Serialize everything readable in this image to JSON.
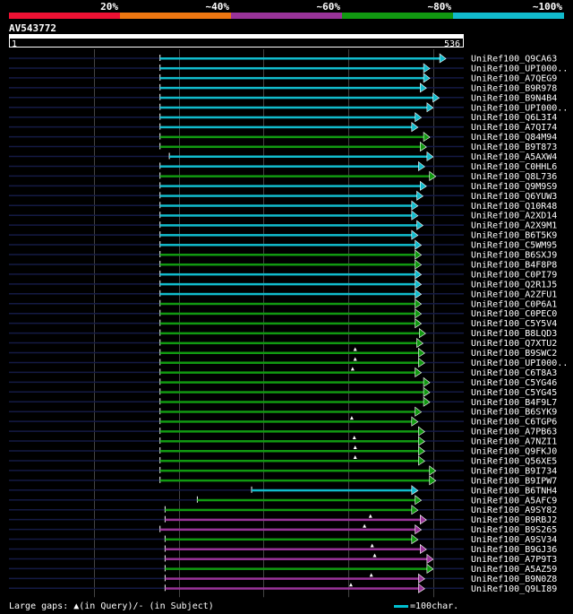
{
  "query_id": "AV543772",
  "axis_start": "1",
  "axis_end": "536",
  "legend": {
    "bins": [
      {
        "label": "20%",
        "color": "#ee1133"
      },
      {
        "label": "~40%",
        "color": "#ee7711"
      },
      {
        "label": "~60%",
        "color": "#993399"
      },
      {
        "label": "~80%",
        "color": "#119911"
      },
      {
        "label": "~100%",
        "color": "#11bbcc"
      }
    ]
  },
  "footer": {
    "text": "Large gaps: ▲(in Query)/- (in Subject)",
    "scale_label": "=100char."
  },
  "chart_data": {
    "type": "bar",
    "query_length": 536,
    "hits": [
      {
        "name": "UniRef100_Q9CA63",
        "start": 178,
        "end": 515,
        "color": "#11bbcc",
        "gap": null
      },
      {
        "name": "UniRef100_UPI000..",
        "start": 178,
        "end": 496,
        "color": "#11bbcc",
        "gap": null
      },
      {
        "name": "UniRef100_A7QEG9",
        "start": 178,
        "end": 496,
        "color": "#11bbcc",
        "gap": null
      },
      {
        "name": "UniRef100_B9R978",
        "start": 178,
        "end": 492,
        "color": "#11bbcc",
        "gap": null
      },
      {
        "name": "UniRef100_B9N4B4",
        "start": 178,
        "end": 507,
        "color": "#11bbcc",
        "gap": null
      },
      {
        "name": "UniRef100_UPI000..",
        "start": 178,
        "end": 500,
        "color": "#11bbcc",
        "gap": null
      },
      {
        "name": "UniRef100_Q6L3I4",
        "start": 178,
        "end": 486,
        "color": "#11bbcc",
        "gap": null
      },
      {
        "name": "UniRef100_A7QI74",
        "start": 178,
        "end": 482,
        "color": "#11bbcc",
        "gap": null
      },
      {
        "name": "UniRef100_Q84M94",
        "start": 178,
        "end": 496,
        "color": "#119911",
        "gap": null
      },
      {
        "name": "UniRef100_B9T873",
        "start": 178,
        "end": 492,
        "color": "#119911",
        "gap": null
      },
      {
        "name": "UniRef100_A5AXW4",
        "start": 189,
        "end": 500,
        "color": "#11bbcc",
        "gap": null
      },
      {
        "name": "UniRef100_C0HHL6",
        "start": 178,
        "end": 490,
        "color": "#11bbcc",
        "gap": null
      },
      {
        "name": "UniRef100_Q8L736",
        "start": 178,
        "end": 503,
        "color": "#119911",
        "gap": null
      },
      {
        "name": "UniRef100_Q9M9S9",
        "start": 178,
        "end": 492,
        "color": "#11bbcc",
        "gap": null
      },
      {
        "name": "UniRef100_Q6YUW3",
        "start": 178,
        "end": 488,
        "color": "#11bbcc",
        "gap": null
      },
      {
        "name": "UniRef100_Q10R48",
        "start": 178,
        "end": 482,
        "color": "#11bbcc",
        "gap": null
      },
      {
        "name": "UniRef100_A2XD14",
        "start": 178,
        "end": 482,
        "color": "#11bbcc",
        "gap": null
      },
      {
        "name": "UniRef100_A2X9M1",
        "start": 178,
        "end": 488,
        "color": "#11bbcc",
        "gap": null
      },
      {
        "name": "UniRef100_B6T5K9",
        "start": 178,
        "end": 482,
        "color": "#11bbcc",
        "gap": null
      },
      {
        "name": "UniRef100_C5WM95",
        "start": 178,
        "end": 486,
        "color": "#11bbcc",
        "gap": null
      },
      {
        "name": "UniRef100_B6SXJ9",
        "start": 178,
        "end": 486,
        "color": "#119911",
        "gap": null
      },
      {
        "name": "UniRef100_B4F8P8",
        "start": 178,
        "end": 486,
        "color": "#119911",
        "gap": null
      },
      {
        "name": "UniRef100_C0PI79",
        "start": 178,
        "end": 486,
        "color": "#11bbcc",
        "gap": null
      },
      {
        "name": "UniRef100_Q2R1J5",
        "start": 178,
        "end": 486,
        "color": "#11bbcc",
        "gap": null
      },
      {
        "name": "UniRef100_A2ZFU1",
        "start": 178,
        "end": 486,
        "color": "#11bbcc",
        "gap": null
      },
      {
        "name": "UniRef100_C0P6A1",
        "start": 178,
        "end": 486,
        "color": "#119911",
        "gap": null
      },
      {
        "name": "UniRef100_C0PEC0",
        "start": 178,
        "end": 486,
        "color": "#119911",
        "gap": null
      },
      {
        "name": "UniRef100_C5Y5V4",
        "start": 178,
        "end": 486,
        "color": "#119911",
        "gap": null
      },
      {
        "name": "UniRef100_B8LQD3",
        "start": 178,
        "end": 491,
        "color": "#119911",
        "gap": null
      },
      {
        "name": "UniRef100_Q7XTU2",
        "start": 178,
        "end": 488,
        "color": "#119911",
        "gap": null
      },
      {
        "name": "UniRef100_B9SWC2",
        "start": 178,
        "end": 490,
        "color": "#119911",
        "gap": 408
      },
      {
        "name": "UniRef100_UPI000..",
        "start": 178,
        "end": 490,
        "color": "#119911",
        "gap": 408
      },
      {
        "name": "UniRef100_C6T8A3",
        "start": 178,
        "end": 486,
        "color": "#119911",
        "gap": 405
      },
      {
        "name": "UniRef100_C5YG46",
        "start": 178,
        "end": 496,
        "color": "#119911",
        "gap": null
      },
      {
        "name": "UniRef100_C5YG45",
        "start": 178,
        "end": 496,
        "color": "#119911",
        "gap": null
      },
      {
        "name": "UniRef100_B4F9L7",
        "start": 178,
        "end": 496,
        "color": "#119911",
        "gap": null
      },
      {
        "name": "UniRef100_B6SYK9",
        "start": 178,
        "end": 486,
        "color": "#119911",
        "gap": null
      },
      {
        "name": "UniRef100_C6TGP6",
        "start": 178,
        "end": 482,
        "color": "#119911",
        "gap": 404
      },
      {
        "name": "UniRef100_A7PB63",
        "start": 178,
        "end": 490,
        "color": "#119911",
        "gap": null
      },
      {
        "name": "UniRef100_A7NZI1",
        "start": 178,
        "end": 490,
        "color": "#119911",
        "gap": 407
      },
      {
        "name": "UniRef100_Q9FKJ0",
        "start": 178,
        "end": 490,
        "color": "#119911",
        "gap": 408
      },
      {
        "name": "UniRef100_Q56XE5",
        "start": 178,
        "end": 490,
        "color": "#119911",
        "gap": 408
      },
      {
        "name": "UniRef100_B9I734",
        "start": 178,
        "end": 503,
        "color": "#119911",
        "gap": null
      },
      {
        "name": "UniRef100_B9IPW7",
        "start": 178,
        "end": 503,
        "color": "#119911",
        "gap": null
      },
      {
        "name": "UniRef100_B6TNH4",
        "start": 286,
        "end": 482,
        "color": "#11bbcc",
        "gap": null
      },
      {
        "name": "UniRef100_A5AFC9",
        "start": 222,
        "end": 486,
        "color": "#119911",
        "gap": null
      },
      {
        "name": "UniRef100_A9SY82",
        "start": 184,
        "end": 482,
        "color": "#119911",
        "gap": null
      },
      {
        "name": "UniRef100_B9RBJ2",
        "start": 184,
        "end": 492,
        "color": "#993399",
        "gap": 426
      },
      {
        "name": "UniRef100_B9S265",
        "start": 178,
        "end": 486,
        "color": "#993399",
        "gap": 419
      },
      {
        "name": "UniRef100_A9SV34",
        "start": 184,
        "end": 482,
        "color": "#119911",
        "gap": null
      },
      {
        "name": "UniRef100_B9GJ36",
        "start": 184,
        "end": 492,
        "color": "#993399",
        "gap": 428
      },
      {
        "name": "UniRef100_A7P9T3",
        "start": 184,
        "end": 500,
        "color": "#993399",
        "gap": 431
      },
      {
        "name": "UniRef100_A5AZ59",
        "start": 184,
        "end": 500,
        "color": "#119911",
        "gap": null
      },
      {
        "name": "UniRef100_B9N0Z8",
        "start": 184,
        "end": 490,
        "color": "#993399",
        "gap": 427
      },
      {
        "name": "UniRef100_Q9LI89",
        "start": 184,
        "end": 490,
        "color": "#993399",
        "gap": 403
      }
    ]
  }
}
